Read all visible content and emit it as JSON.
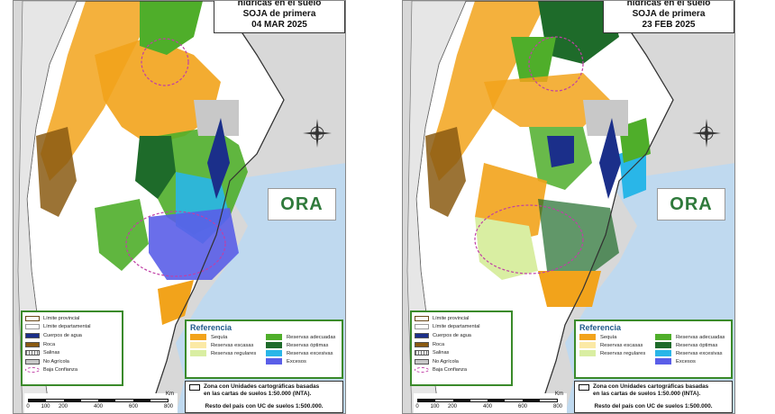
{
  "panels": [
    {
      "title_line1": "hídricas en el suelo",
      "title_line2": "SOJA de primera",
      "date": "04 MAR 2025"
    },
    {
      "title_line1": "hídricas en el suelo",
      "title_line2": "SOJA de primera",
      "date": "23 FEB 2025"
    }
  ],
  "logo_text": "ORA",
  "legend_left": [
    {
      "label": "Límite provincial",
      "color": "#ffffff",
      "icon": "line-provincial"
    },
    {
      "label": "Límite departamental",
      "color": "#ffffff",
      "icon": "line-departmental"
    },
    {
      "label": "Cuerpos de agua",
      "color": "#1b2f8a",
      "icon": "water"
    },
    {
      "label": "Roca",
      "color": "#8a5a12",
      "icon": "rock"
    },
    {
      "label": "Salinas",
      "color": "#e8e8e8",
      "icon": "salinas"
    },
    {
      "label": "No Agrícola",
      "color": "#c8c8c8",
      "icon": "non-agricultural"
    },
    {
      "label": "Baja Confianza",
      "color": "#ffffff",
      "icon": "low-confidence-circle"
    }
  ],
  "reference": {
    "title": "Referencia",
    "items": [
      {
        "label": "Sequía",
        "color": "#f2a31b"
      },
      {
        "label": "Reservas adecuadas",
        "color": "#4fae2a"
      },
      {
        "label": "Reservas escasas",
        "color": "#fbe9a6"
      },
      {
        "label": "Reservas óptimas",
        "color": "#1e6b2a"
      },
      {
        "label": "Reservas regulares",
        "color": "#d9eea2"
      },
      {
        "label": "Reservas excesivas",
        "color": "#29b6e8"
      },
      {
        "label": "",
        "color": ""
      },
      {
        "label": "Excesos",
        "color": "#5a5ee8"
      }
    ]
  },
  "note": {
    "line1": "Zona con Unidades cartográficas basadas",
    "line2": "en las cartas de suelos 1:50.000 (INTA).",
    "line3": "Resto del país con UC de suelos 1:500.000."
  },
  "scale": {
    "unit": "Km",
    "labels": [
      "0",
      "100",
      "200",
      "400",
      "600",
      "800"
    ]
  },
  "colors": {
    "sea": "#bfd9ef",
    "neighbor_land": "#d8d8d8",
    "province_base": "#ffffff"
  }
}
